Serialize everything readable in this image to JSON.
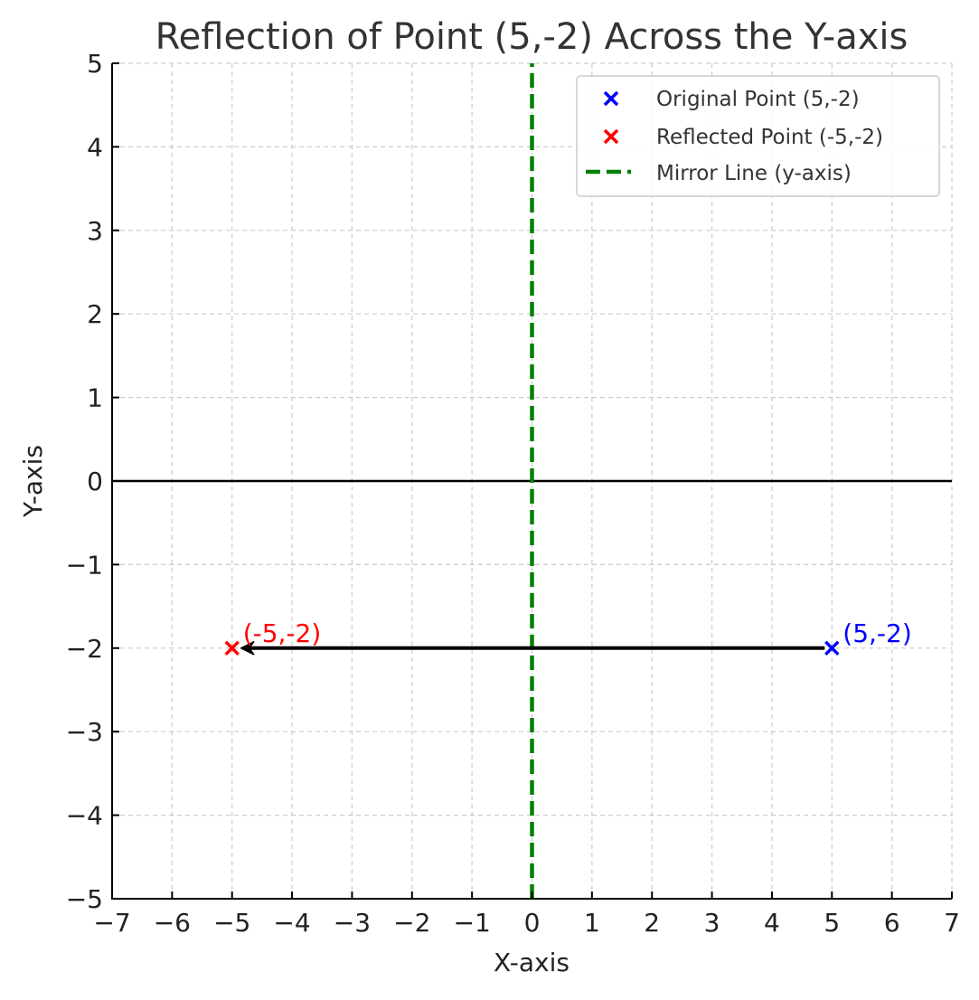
{
  "chart_data": {
    "type": "scatter",
    "title": "Reflection of Point (5,-2) Across the Y-axis",
    "xlabel": "X-axis",
    "ylabel": "Y-axis",
    "xlim": [
      -7,
      7
    ],
    "ylim": [
      -5,
      5
    ],
    "xticks": [
      -7,
      -6,
      -5,
      -4,
      -3,
      -2,
      -1,
      0,
      1,
      2,
      3,
      4,
      5,
      6,
      7
    ],
    "yticks": [
      -5,
      -4,
      -3,
      -2,
      -1,
      0,
      1,
      2,
      3,
      4,
      5
    ],
    "xtick_labels": [
      "−7",
      "−6",
      "−5",
      "−4",
      "−3",
      "−2",
      "−1",
      "0",
      "1",
      "2",
      "3",
      "4",
      "5",
      "6",
      "7"
    ],
    "ytick_labels": [
      "−5",
      "−4",
      "−3",
      "−2",
      "−1",
      "0",
      "1",
      "2",
      "3",
      "4",
      "5"
    ],
    "grid": true,
    "legend_position": "top-right",
    "series": [
      {
        "name": "Original Point (5,-2)",
        "marker": "x",
        "color": "#0000ff",
        "points": [
          {
            "x": 5,
            "y": -2
          }
        ],
        "label": "(5,-2)"
      },
      {
        "name": "Reflected Point (-5,-2)",
        "marker": "x",
        "color": "#ff0000",
        "points": [
          {
            "x": -5,
            "y": -2
          }
        ],
        "label": "(-5,-2)"
      },
      {
        "name": "Mirror Line (y-axis)",
        "type": "line",
        "style": "dashed",
        "color": "#008000",
        "x": [
          0,
          0
        ],
        "y": [
          -5,
          5
        ]
      }
    ],
    "horizontal_line": {
      "y": 0,
      "color": "#000000"
    },
    "arrow": {
      "from": [
        5,
        -2
      ],
      "to": [
        -5,
        -2
      ],
      "color": "#000000"
    }
  }
}
